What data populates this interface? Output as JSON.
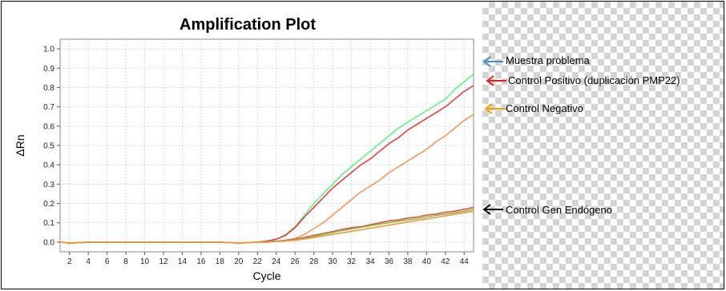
{
  "chart_data": {
    "type": "line",
    "title": "Amplification Plot",
    "xlabel": "Cycle",
    "ylabel": "ΔRn",
    "xlim": [
      1,
      45
    ],
    "ylim": [
      -0.05,
      1.05
    ],
    "grid": true,
    "x_ticks": [
      2,
      4,
      6,
      8,
      10,
      12,
      14,
      16,
      18,
      20,
      22,
      24,
      26,
      28,
      30,
      32,
      34,
      36,
      38,
      40,
      42,
      44
    ],
    "y_ticks": [
      0.0,
      0.1,
      0.2,
      0.3,
      0.4,
      0.5,
      0.6,
      0.7,
      0.8,
      0.9,
      1.0
    ],
    "x": [
      1,
      2,
      4,
      6,
      8,
      10,
      12,
      14,
      16,
      18,
      20,
      22,
      23,
      24,
      25,
      26,
      27,
      28,
      29,
      30,
      31,
      32,
      33,
      34,
      35,
      36,
      37,
      38,
      39,
      40,
      41,
      42,
      43,
      44,
      45
    ],
    "series": [
      {
        "color": "#66ee88",
        "values": [
          0.0,
          -0.005,
          0.0,
          0.0,
          0.0,
          0.0,
          0.0,
          0.0,
          0.0,
          0.0,
          -0.005,
          0.0,
          0.005,
          0.015,
          0.04,
          0.08,
          0.14,
          0.2,
          0.25,
          0.3,
          0.35,
          0.39,
          0.43,
          0.47,
          0.51,
          0.55,
          0.59,
          0.62,
          0.65,
          0.68,
          0.71,
          0.74,
          0.79,
          0.83,
          0.87
        ]
      },
      {
        "color": "#dd4444",
        "values": [
          0.0,
          -0.005,
          0.0,
          0.0,
          0.0,
          0.0,
          0.0,
          0.0,
          0.0,
          0.0,
          -0.005,
          0.0,
          0.005,
          0.015,
          0.035,
          0.075,
          0.13,
          0.18,
          0.23,
          0.28,
          0.32,
          0.36,
          0.4,
          0.43,
          0.47,
          0.51,
          0.54,
          0.58,
          0.61,
          0.64,
          0.67,
          0.7,
          0.74,
          0.78,
          0.81
        ]
      },
      {
        "color": "#ee9966",
        "values": [
          0.0,
          -0.005,
          0.0,
          0.0,
          0.0,
          0.0,
          0.0,
          0.0,
          0.0,
          0.0,
          -0.005,
          0.0,
          0.0,
          0.005,
          0.01,
          0.02,
          0.04,
          0.07,
          0.1,
          0.14,
          0.18,
          0.22,
          0.26,
          0.29,
          0.32,
          0.36,
          0.39,
          0.42,
          0.45,
          0.48,
          0.52,
          0.55,
          0.59,
          0.63,
          0.66
        ]
      },
      {
        "color": "#dd5533",
        "values": [
          0.0,
          -0.005,
          0.0,
          0.0,
          0.0,
          0.0,
          0.0,
          0.0,
          0.0,
          0.0,
          -0.005,
          0.0,
          0.0,
          0.005,
          0.01,
          0.015,
          0.025,
          0.035,
          0.045,
          0.055,
          0.065,
          0.075,
          0.08,
          0.09,
          0.1,
          0.11,
          0.115,
          0.125,
          0.13,
          0.14,
          0.145,
          0.155,
          0.16,
          0.17,
          0.18
        ]
      },
      {
        "color": "#88bb55",
        "values": [
          0.0,
          -0.005,
          0.0,
          0.0,
          0.0,
          0.0,
          0.0,
          0.0,
          0.0,
          0.0,
          -0.005,
          0.0,
          0.0,
          0.005,
          0.008,
          0.012,
          0.02,
          0.03,
          0.04,
          0.05,
          0.06,
          0.068,
          0.076,
          0.085,
          0.093,
          0.1,
          0.108,
          0.115,
          0.122,
          0.13,
          0.138,
          0.145,
          0.152,
          0.16,
          0.17
        ]
      },
      {
        "color": "#ee9944",
        "values": [
          0.0,
          -0.005,
          0.0,
          0.0,
          0.0,
          0.0,
          0.0,
          0.0,
          0.0,
          0.0,
          -0.005,
          0.0,
          0.0,
          0.003,
          0.006,
          0.01,
          0.016,
          0.024,
          0.032,
          0.04,
          0.048,
          0.056,
          0.064,
          0.072,
          0.08,
          0.088,
          0.096,
          0.104,
          0.112,
          0.12,
          0.128,
          0.136,
          0.144,
          0.152,
          0.16
        ]
      }
    ]
  },
  "annotations": [
    {
      "label": "Muestra problema",
      "arrow_color": "#4a90b8"
    },
    {
      "label": "Control Positivo (duplicación PMP22)",
      "arrow_color": "#e02020"
    },
    {
      "label": "Control Negativo",
      "arrow_color": "#f0a000"
    },
    {
      "label": "Control Gen Endógeno",
      "arrow_color": "#000000"
    }
  ]
}
